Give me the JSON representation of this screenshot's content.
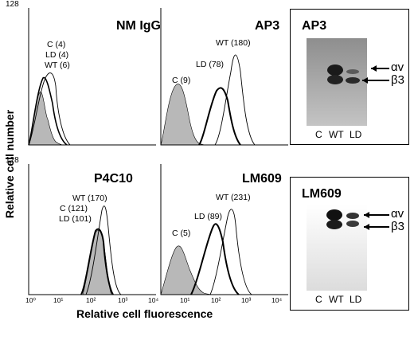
{
  "y_axis_label": "Relative cell number",
  "x_axis_label": "Relative cell fluorescence",
  "y_tick_max": "128",
  "x_ticks": [
    "10⁰",
    "10¹",
    "10²",
    "10³",
    "10⁴"
  ],
  "panels": [
    {
      "title": "NM IgG",
      "annotations": [
        "C (4)",
        "LD (4)",
        "WT (6)"
      ]
    },
    {
      "title": "AP3",
      "annotations": [
        "WT (180)",
        "LD (78)",
        "C (9)"
      ]
    },
    {
      "title": "P4C10",
      "annotations": [
        "WT (170)",
        "C (121)",
        "LD (101)"
      ]
    },
    {
      "title": "LM609",
      "annotations": [
        "WT (231)",
        "LD (89)",
        "C (5)"
      ]
    }
  ],
  "blots": [
    {
      "title": "AP3",
      "bands": [
        "αv",
        "β3"
      ],
      "lanes": [
        "C",
        "WT",
        "LD"
      ]
    },
    {
      "title": "LM609",
      "bands": [
        "αv",
        "β3"
      ],
      "lanes": [
        "C",
        "WT",
        "LD"
      ]
    }
  ],
  "colors": {
    "control_fill": "#b8b8b8",
    "line": "#000000",
    "blot_bg_top": "#9a9a9a",
    "blot_bg_bottom": "#efefef"
  }
}
